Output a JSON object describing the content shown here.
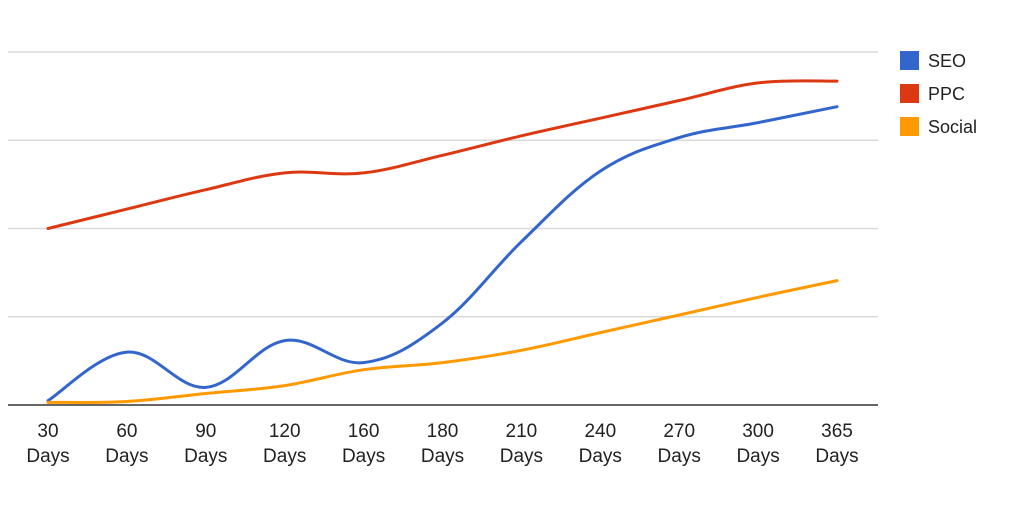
{
  "chart_data": {
    "type": "line",
    "title": "",
    "xlabel": "",
    "ylabel": "",
    "x_categories": [
      [
        "30",
        "Days"
      ],
      [
        "60",
        "Days"
      ],
      [
        "90",
        "Days"
      ],
      [
        "120",
        "Days"
      ],
      [
        "160",
        "Days"
      ],
      [
        "180",
        "Days"
      ],
      [
        "210",
        "Days"
      ],
      [
        "240",
        "Days"
      ],
      [
        "270",
        "Days"
      ],
      [
        "300",
        "Days"
      ],
      [
        "365",
        "Days"
      ]
    ],
    "ylim": [
      0,
      4
    ],
    "y_gridlines": [
      0,
      1,
      2,
      3,
      4
    ],
    "y_tick_labels_visible": false,
    "grid": true,
    "legend_position": "right",
    "series": [
      {
        "name": "SEO",
        "color": "#3366cc",
        "values": [
          0.05,
          0.6,
          0.2,
          0.73,
          0.48,
          0.93,
          1.85,
          2.65,
          3.03,
          3.2,
          3.38
        ]
      },
      {
        "name": "PPC",
        "color": "#dc3912",
        "values": [
          2.0,
          2.22,
          2.44,
          2.63,
          2.63,
          2.83,
          3.05,
          3.25,
          3.45,
          3.65,
          3.67
        ]
      },
      {
        "name": "Social",
        "color": "#ff9900",
        "values": [
          0.03,
          0.04,
          0.13,
          0.22,
          0.4,
          0.48,
          0.62,
          0.82,
          1.02,
          1.22,
          1.41
        ]
      }
    ]
  }
}
